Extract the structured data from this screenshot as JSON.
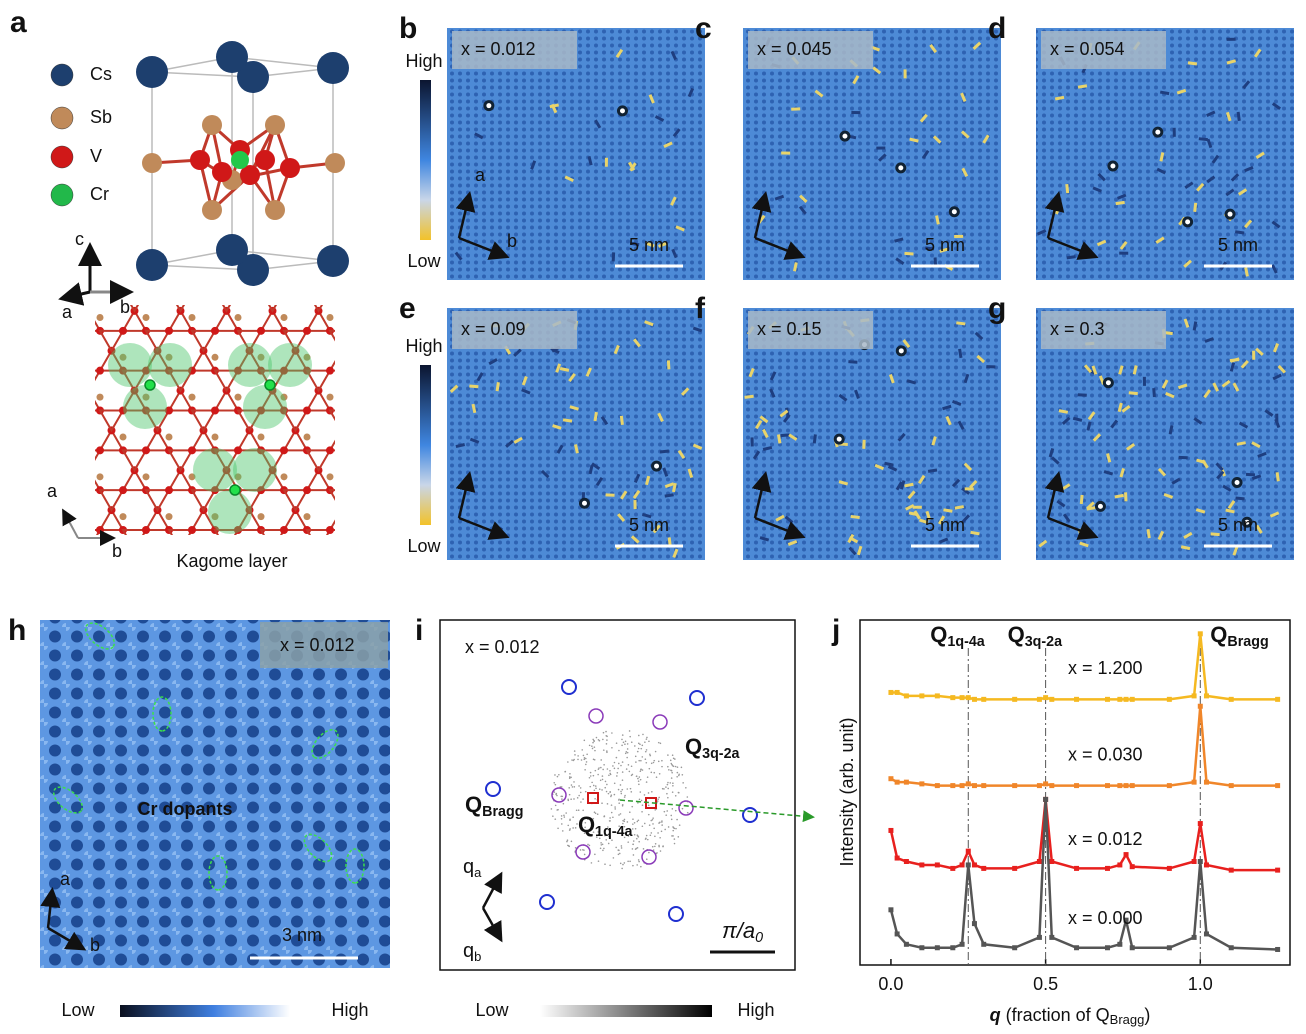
{
  "figure": {
    "panel_a": {
      "label": "a",
      "legend": [
        "Cs",
        "Sb",
        "V",
        "Cr"
      ],
      "axes_3d": [
        "c",
        "a",
        "b"
      ],
      "axes_2d": [
        "a",
        "b"
      ],
      "caption": "Kagome layer"
    },
    "stm_panels": [
      {
        "label": "b",
        "doping": "x = 0.012",
        "scale": "5 nm",
        "axes": [
          "a",
          "b"
        ]
      },
      {
        "label": "c",
        "doping": "x = 0.045",
        "scale": "5 nm"
      },
      {
        "label": "d",
        "doping": "x = 0.054",
        "scale": "5 nm"
      },
      {
        "label": "e",
        "doping": "x = 0.09",
        "scale": "5 nm"
      },
      {
        "label": "f",
        "doping": "x = 0.15",
        "scale": "5 nm"
      },
      {
        "label": "g",
        "doping": "x = 0.3",
        "scale": "5 nm"
      }
    ],
    "stm_colorbars": [
      {
        "high": "High",
        "low": "Low"
      },
      {
        "high": "High",
        "low": "Low"
      }
    ],
    "panel_h": {
      "label": "h",
      "doping": "x = 0.012",
      "annotation": "Cr dopants",
      "axes": [
        "a",
        "b"
      ],
      "scale": "3 nm",
      "colorbar": {
        "low": "Low",
        "high": "High"
      }
    },
    "panel_i": {
      "label": "i",
      "doping": "x = 0.012",
      "q_3q": {
        "symbol": "Q",
        "sub": "3q-2a"
      },
      "q_bragg": {
        "symbol": "Q",
        "sub": "Bragg"
      },
      "q_1q": {
        "symbol": "Q",
        "sub": "1q-4a"
      },
      "axes": [
        {
          "symbol": "q",
          "sub": "a"
        },
        {
          "symbol": "q",
          "sub": "b"
        }
      ],
      "scale": {
        "symbol": "π/a",
        "sub": "0"
      },
      "colorbar": {
        "low": "Low",
        "high": "High"
      }
    }
  },
  "chart_data": {
    "type": "line",
    "panel_label": "j",
    "ylabel": "Intensity (arb. unit)",
    "xlabel": {
      "symbol": "q",
      "text": " (fraction of Q",
      "sub": "Bragg",
      "close": ")"
    },
    "xlim": [
      -0.1,
      1.29
    ],
    "ylim": [
      0,
      10
    ],
    "xticks": [
      {
        "value": 0,
        "label": "0.0"
      },
      {
        "value": 0.5,
        "label": "0.5"
      },
      {
        "value": 1,
        "label": "1.0"
      }
    ],
    "markers": [
      {
        "value": 0.25,
        "symbol": "Q",
        "sub": "1q-4a",
        "color": "#e8201e"
      },
      {
        "value": 0.5,
        "symbol": "Q",
        "sub": "3q-2a",
        "color": "#8a3ab9"
      },
      {
        "value": 1.0,
        "symbol": "Q",
        "sub": "Bragg",
        "color": "#1f2fd0"
      }
    ],
    "x": [
      0,
      0.02,
      0.05,
      0.1,
      0.15,
      0.2,
      0.23,
      0.25,
      0.27,
      0.3,
      0.4,
      0.48,
      0.5,
      0.52,
      0.6,
      0.7,
      0.74,
      0.76,
      0.78,
      0.9,
      0.98,
      1.0,
      1.02,
      1.1,
      1.25
    ],
    "series": [
      {
        "name": "x = 1.200",
        "color": "#f5b921",
        "label_color": "#f08a2a",
        "values": [
          7.9,
          7.9,
          7.8,
          7.8,
          7.8,
          7.75,
          7.75,
          7.75,
          7.7,
          7.7,
          7.7,
          7.7,
          7.75,
          7.7,
          7.7,
          7.7,
          7.7,
          7.7,
          7.7,
          7.7,
          7.8,
          9.6,
          7.8,
          7.7,
          7.7
        ]
      },
      {
        "name": "x = 0.030",
        "color": "#f0862a",
        "label_color": "#f08a2a",
        "values": [
          5.4,
          5.3,
          5.3,
          5.25,
          5.2,
          5.2,
          5.2,
          5.25,
          5.2,
          5.2,
          5.2,
          5.2,
          5.25,
          5.2,
          5.2,
          5.2,
          5.2,
          5.2,
          5.2,
          5.2,
          5.3,
          7.5,
          5.3,
          5.2,
          5.2
        ]
      },
      {
        "name": "x = 0.012",
        "color": "#e8201e",
        "label_color": "#b01010",
        "values": [
          3.9,
          3.1,
          3.0,
          2.9,
          2.9,
          2.8,
          2.9,
          3.3,
          2.9,
          2.8,
          2.8,
          3.0,
          4.8,
          3.0,
          2.8,
          2.8,
          2.9,
          3.2,
          2.85,
          2.8,
          3.0,
          4.1,
          2.9,
          2.75,
          2.75
        ]
      },
      {
        "name": "x = 0.000",
        "color": "#555555",
        "label_color": "#222222",
        "values": [
          1.6,
          0.9,
          0.6,
          0.5,
          0.5,
          0.5,
          0.6,
          2.9,
          1.2,
          0.6,
          0.5,
          0.8,
          4.8,
          0.8,
          0.5,
          0.5,
          0.6,
          1.3,
          0.5,
          0.5,
          0.8,
          3.0,
          0.9,
          0.5,
          0.45
        ]
      }
    ]
  }
}
